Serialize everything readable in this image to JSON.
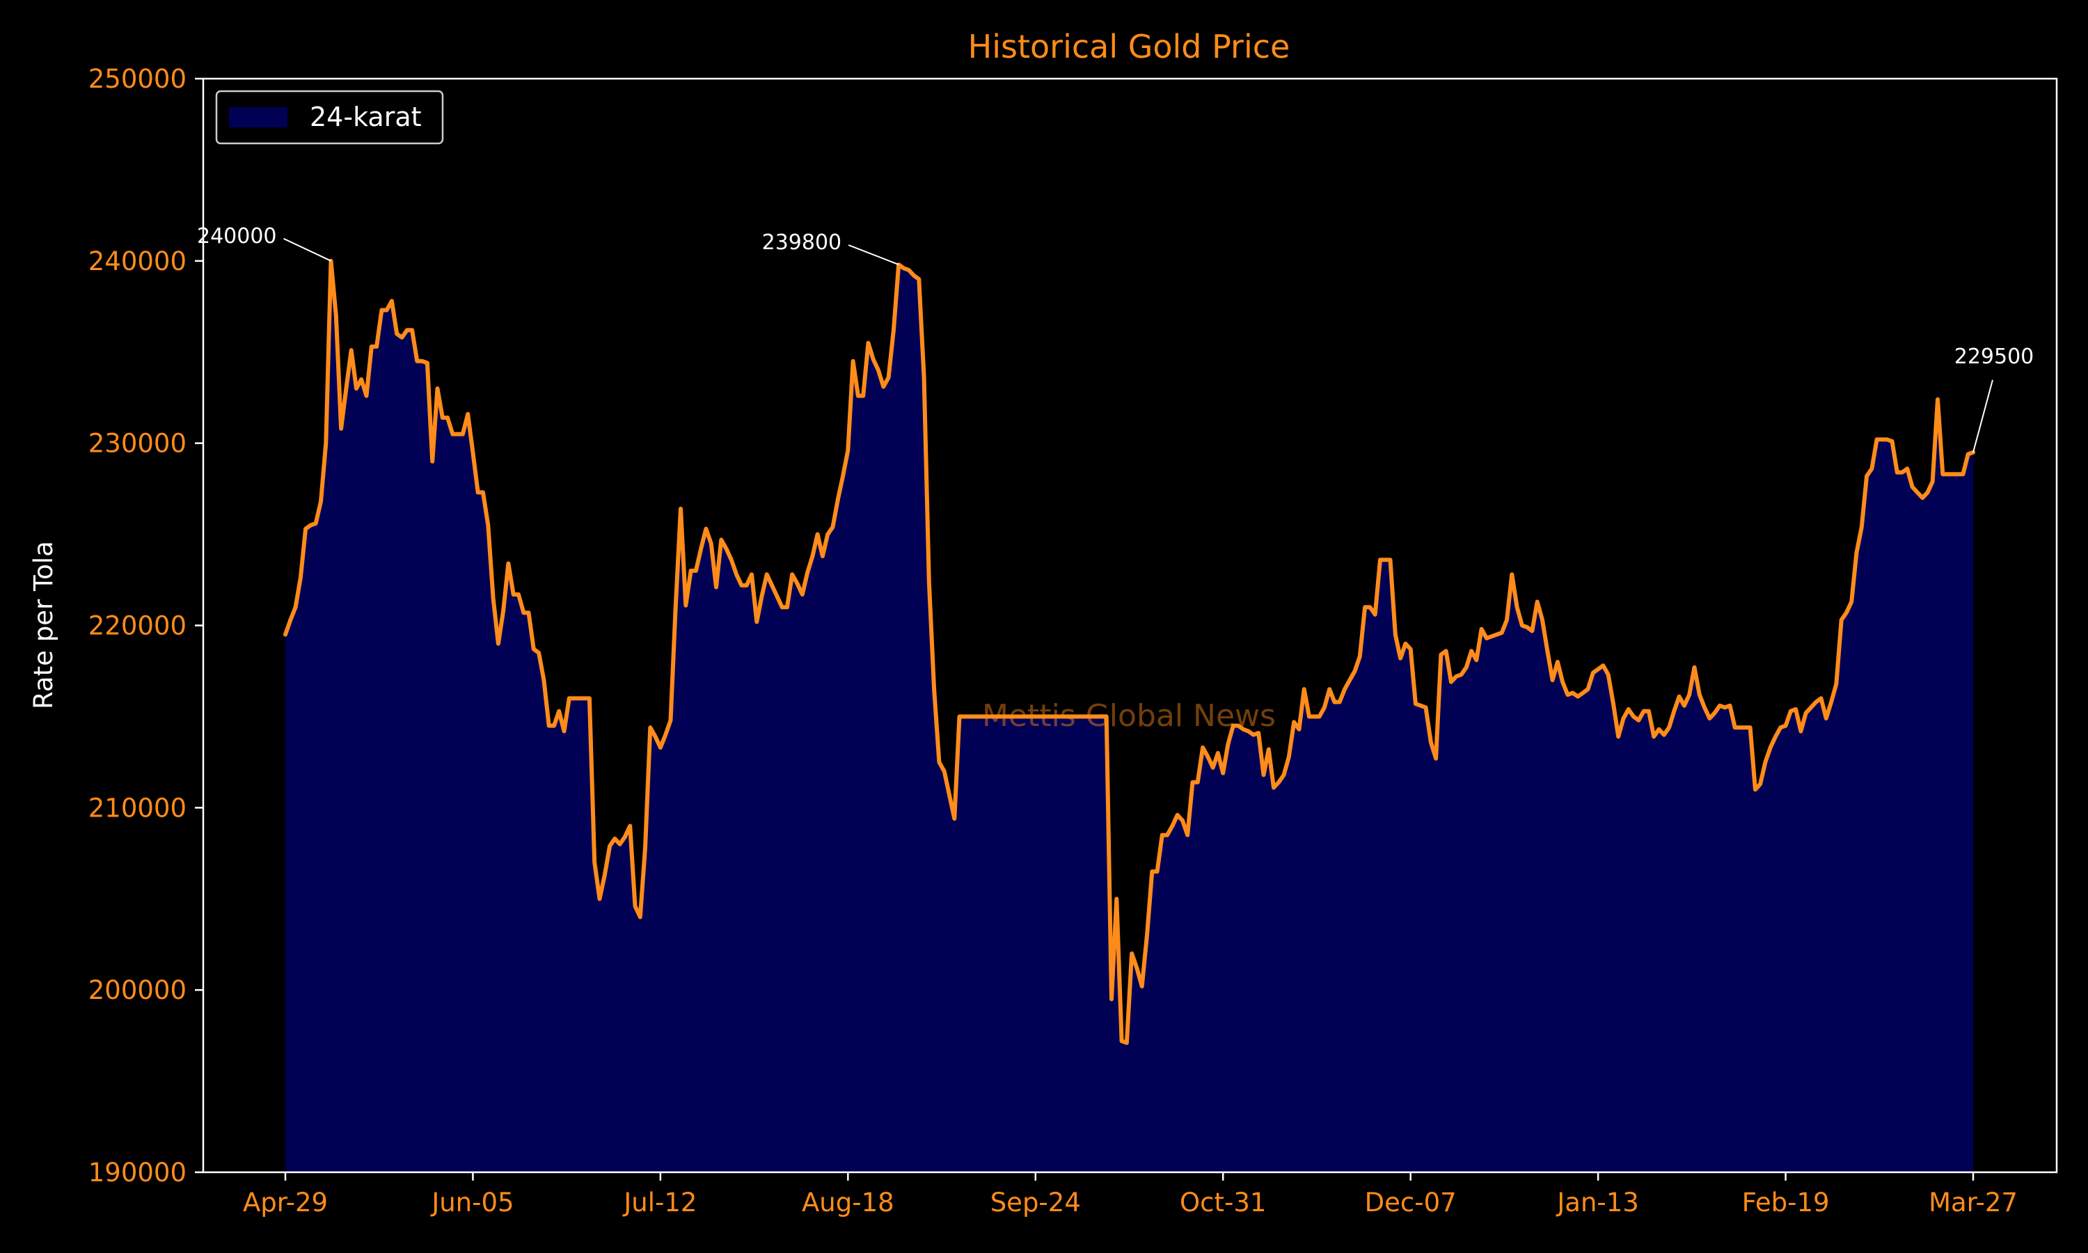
{
  "chart_data": {
    "type": "area",
    "title": "Historical Gold Price",
    "xlabel": "",
    "ylabel": "Rate per Tola",
    "watermark": "Mettis Global News",
    "ylim": [
      190000,
      250000
    ],
    "yticks": [
      190000,
      200000,
      210000,
      220000,
      230000,
      240000,
      250000
    ],
    "xticks": [
      {
        "label": "Apr-29",
        "index": 0
      },
      {
        "label": "Jun-05",
        "index": 37
      },
      {
        "label": "Jul-12",
        "index": 74
      },
      {
        "label": "Aug-18",
        "index": 111
      },
      {
        "label": "Sep-24",
        "index": 148
      },
      {
        "label": "Oct-31",
        "index": 185
      },
      {
        "label": "Dec-07",
        "index": 222
      },
      {
        "label": "Jan-13",
        "index": 259
      },
      {
        "label": "Feb-19",
        "index": 296
      },
      {
        "label": "Mar-27",
        "index": 333
      }
    ],
    "grid": false,
    "legend_position": "top-left",
    "colors": {
      "background": "#000000",
      "line": "#ff8c1a",
      "fill": "#000055",
      "text": "#ffffff",
      "tick": "#ff8c1a",
      "axes": "#ffffff"
    },
    "series": [
      {
        "name": "24-karat",
        "values": [
          219500,
          220300,
          221000,
          222600,
          225300,
          225500,
          225600,
          226800,
          230000,
          240000,
          237000,
          230800,
          233000,
          235100,
          233000,
          233500,
          232600,
          235300,
          235300,
          237300,
          237300,
          237800,
          236000,
          235800,
          236200,
          236200,
          234500,
          234500,
          234400,
          229000,
          233000,
          231400,
          231400,
          230500,
          230500,
          230500,
          231600,
          229500,
          227300,
          227300,
          225500,
          221500,
          219000,
          220800,
          223400,
          221700,
          221700,
          220700,
          220700,
          218700,
          218500,
          217000,
          214500,
          214500,
          215300,
          214200,
          216000,
          216000,
          216000,
          216000,
          216000,
          207000,
          205000,
          206300,
          207900,
          208300,
          208000,
          208400,
          209000,
          204600,
          204000,
          207800,
          214400,
          213900,
          213300,
          214000,
          214800,
          221000,
          226400,
          221100,
          223000,
          223000,
          224200,
          225300,
          224500,
          222100,
          224700,
          224200,
          223600,
          222800,
          222200,
          222200,
          222800,
          220200,
          221600,
          222800,
          222200,
          221600,
          221000,
          221000,
          222800,
          222300,
          221700,
          222900,
          223800,
          225000,
          223800,
          225000,
          225400,
          226900,
          228200,
          229600,
          234500,
          232600,
          232600,
          235500,
          234600,
          234000,
          233100,
          233600,
          236200,
          239800,
          239600,
          239500,
          239200,
          239000,
          233600,
          222400,
          216500,
          212500,
          212000,
          210700,
          209400,
          215000,
          215000,
          215000,
          215000,
          215000,
          215000,
          215000,
          215000,
          215000,
          215000,
          215000,
          215000,
          215000,
          215000,
          215000,
          215000,
          215000,
          215000,
          215000,
          215000,
          215000,
          215000,
          215000,
          215000,
          215000,
          215000,
          215000,
          215000,
          215000,
          215000,
          199500,
          205000,
          197200,
          197100,
          202000,
          201200,
          200200,
          203000,
          206500,
          206500,
          208500,
          208500,
          209000,
          209600,
          209300,
          208500,
          211400,
          211400,
          213300,
          212800,
          212200,
          213000,
          211900,
          213500,
          214500,
          214500,
          214300,
          214200,
          214000,
          214100,
          211800,
          213200,
          211100,
          211400,
          211800,
          212800,
          214700,
          214300,
          216500,
          215000,
          215000,
          215000,
          215500,
          216500,
          215800,
          215800,
          216500,
          217000,
          217500,
          218300,
          221000,
          221000,
          220600,
          223600,
          223600,
          223600,
          219500,
          218200,
          219000,
          218700,
          215700,
          215600,
          215500,
          213600,
          212700,
          218400,
          218600,
          216900,
          217200,
          217300,
          217700,
          218600,
          218100,
          219800,
          219300,
          219400,
          219500,
          219600,
          220300,
          222800,
          221000,
          220000,
          219900,
          219700,
          221300,
          220300,
          218600,
          217000,
          218000,
          216900,
          216200,
          216300,
          216100,
          216300,
          216500,
          217400,
          217600,
          217800,
          217300,
          215700,
          213900,
          214900,
          215400,
          215000,
          214800,
          215300,
          215300,
          213900,
          214300,
          214000,
          214400,
          215300,
          216100,
          215600,
          216200,
          217700,
          216200,
          215500,
          214900,
          215200,
          215600,
          215500,
          215600,
          214400,
          214400,
          214400,
          214400,
          211000,
          211300,
          212500,
          213300,
          213900,
          214400,
          214500,
          215300,
          215400,
          214200,
          215200,
          215500,
          215800,
          216000,
          214900,
          215800,
          216800,
          220300,
          220700,
          221300,
          224000,
          225400,
          228200,
          228600,
          230200,
          230200,
          230200,
          230100,
          228400,
          228400,
          228600,
          227600,
          227300,
          227000,
          227300,
          227900,
          232400,
          228300,
          228300,
          228300,
          228300,
          228300,
          229400,
          229500
        ]
      }
    ],
    "annotations": [
      {
        "text": "240000",
        "index": 9,
        "value": 240000
      },
      {
        "text": "239800",
        "index": 121,
        "value": 239800
      },
      {
        "text": "229500",
        "index": 335,
        "value": 229500
      }
    ]
  }
}
